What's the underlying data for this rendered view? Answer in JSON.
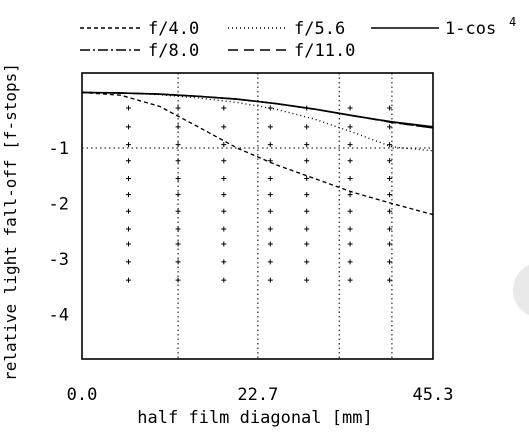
{
  "chart_data": {
    "type": "line",
    "title": "",
    "xlabel": "half film diagonal [mm]",
    "ylabel": "relative light fall-off [f-stops]",
    "xlim": [
      0.0,
      45.3
    ],
    "ylim": [
      -4.8,
      0.35
    ],
    "xticks": [
      {
        "value": 0.0,
        "label": "0.0"
      },
      {
        "value": 22.7,
        "label": "22.7"
      },
      {
        "value": 45.3,
        "label": "45.3"
      }
    ],
    "yticks": [
      {
        "value": -1,
        "label": "-1"
      },
      {
        "value": -2,
        "label": "-2"
      },
      {
        "value": -3,
        "label": "-3"
      },
      {
        "value": -4,
        "label": "-4"
      }
    ],
    "legend": {
      "placement": "top",
      "entries": [
        "f/4.0",
        "f/5.6",
        "1-cos",
        "f/8.0",
        "f/11.0"
      ],
      "cos_exponent": "4"
    },
    "grid": "dotted vertical lines and plus-marker grid",
    "series": [
      {
        "name": "f/4.0",
        "style": "short-dash",
        "x": [
          0,
          5,
          10,
          15,
          20,
          25,
          30,
          35,
          40,
          45.3
        ],
        "y": [
          0,
          -0.05,
          -0.25,
          -0.62,
          -1.0,
          -1.3,
          -1.55,
          -1.8,
          -2.0,
          -2.2
        ]
      },
      {
        "name": "f/5.6",
        "style": "dotted",
        "x": [
          0,
          5,
          10,
          15,
          20,
          25,
          30,
          35,
          40,
          45.3
        ],
        "y": [
          0,
          -0.01,
          -0.04,
          -0.1,
          -0.18,
          -0.3,
          -0.48,
          -0.72,
          -0.98,
          -1.05
        ]
      },
      {
        "name": "1-cos⁴",
        "style": "solid",
        "x": [
          0,
          5,
          10,
          15,
          20,
          25,
          30,
          35,
          40,
          45.3
        ],
        "y": [
          0,
          -0.01,
          -0.03,
          -0.07,
          -0.12,
          -0.2,
          -0.3,
          -0.42,
          -0.53,
          -0.62
        ]
      },
      {
        "name": "f/8.0",
        "style": "dash-dot",
        "x": [
          0,
          5,
          10,
          15,
          20,
          25,
          30,
          35,
          40,
          45.3
        ],
        "y": [
          0,
          -0.01,
          -0.03,
          -0.07,
          -0.12,
          -0.2,
          -0.3,
          -0.42,
          -0.54,
          -0.64
        ]
      },
      {
        "name": "f/11.0",
        "style": "long-dash",
        "x": [
          0,
          5,
          10,
          15,
          20,
          25,
          30,
          35,
          40,
          45.3
        ],
        "y": [
          0,
          -0.01,
          -0.03,
          -0.07,
          -0.12,
          -0.2,
          -0.3,
          -0.42,
          -0.54,
          -0.64
        ]
      }
    ]
  }
}
